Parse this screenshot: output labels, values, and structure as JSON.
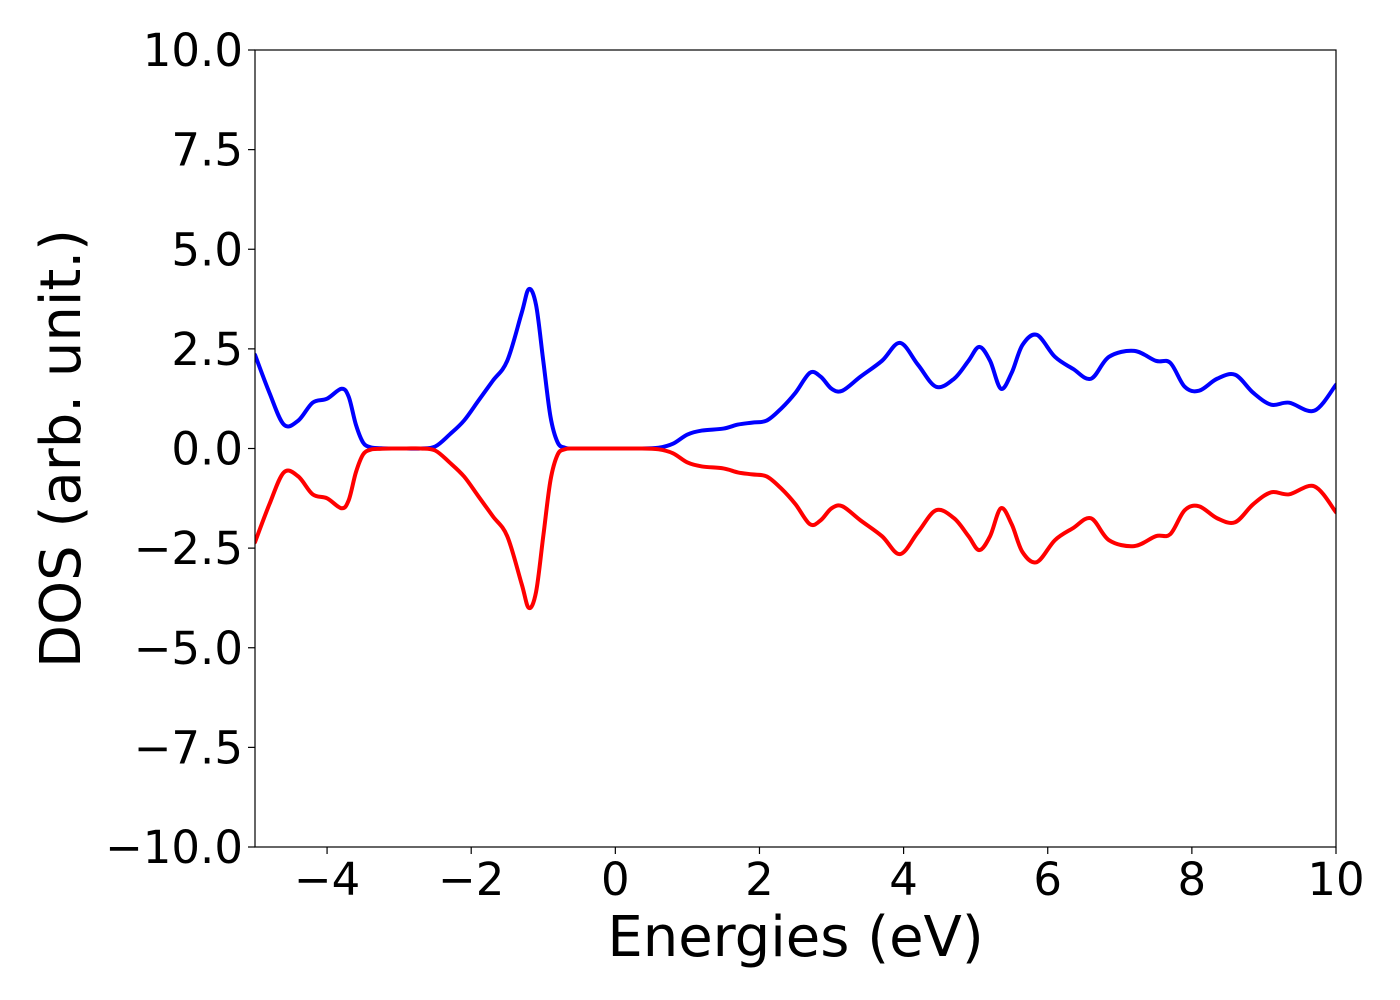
{
  "chart_data": {
    "type": "line",
    "title": "",
    "xlabel": "Energies (eV)",
    "ylabel": "DOS (arb. unit.)",
    "xlim": [
      -5,
      10
    ],
    "ylim": [
      -10,
      10
    ],
    "xticks": [
      -4,
      -2,
      0,
      2,
      4,
      6,
      8,
      10
    ],
    "xtick_labels": [
      "−4",
      "−2",
      "0",
      "2",
      "4",
      "6",
      "8",
      "10"
    ],
    "yticks": [
      10,
      7.5,
      5,
      2.5,
      0,
      -2.5,
      -5,
      -7.5,
      -10
    ],
    "ytick_labels": [
      "10.0",
      "7.5",
      "5.0",
      "2.5",
      "0.0",
      "−2.5",
      "−5.0",
      "−7.5",
      "−10.0"
    ],
    "grid": false,
    "legend": "none",
    "x": [
      -5.0,
      -4.8,
      -4.6,
      -4.4,
      -4.2,
      -4.0,
      -3.8,
      -3.7,
      -3.6,
      -3.5,
      -3.4,
      -3.3,
      -3.1,
      -2.9,
      -2.7,
      -2.5,
      -2.3,
      -2.1,
      -1.9,
      -1.7,
      -1.5,
      -1.3,
      -1.2,
      -1.1,
      -1.0,
      -0.9,
      -0.8,
      -0.7,
      -0.6,
      -0.5,
      -0.3,
      0.0,
      0.3,
      0.6,
      0.8,
      1.0,
      1.2,
      1.5,
      1.7,
      1.9,
      2.1,
      2.3,
      2.5,
      2.7,
      2.85,
      3.0,
      3.15,
      3.4,
      3.7,
      3.95,
      4.2,
      4.45,
      4.7,
      4.9,
      5.05,
      5.2,
      5.35,
      5.5,
      5.65,
      5.85,
      6.1,
      6.35,
      6.6,
      6.85,
      7.2,
      7.5,
      7.7,
      7.9,
      8.1,
      8.35,
      8.6,
      8.85,
      9.1,
      9.35,
      9.7,
      10.0
    ],
    "series": [
      {
        "color": "#0000ff",
        "values": [
          2.35,
          1.4,
          0.6,
          0.7,
          1.15,
          1.25,
          1.5,
          1.3,
          0.6,
          0.15,
          0.03,
          0.01,
          0.0,
          0.0,
          0.0,
          0.05,
          0.35,
          0.7,
          1.2,
          1.7,
          2.2,
          3.4,
          4.0,
          3.6,
          2.2,
          0.8,
          0.15,
          0.02,
          0.0,
          0.0,
          0.0,
          0.0,
          0.0,
          0.02,
          0.12,
          0.35,
          0.45,
          0.5,
          0.6,
          0.65,
          0.7,
          1.0,
          1.4,
          1.9,
          1.8,
          1.5,
          1.45,
          1.8,
          2.2,
          2.65,
          2.1,
          1.55,
          1.75,
          2.2,
          2.55,
          2.2,
          1.5,
          1.9,
          2.6,
          2.85,
          2.3,
          2.0,
          1.75,
          2.3,
          2.45,
          2.2,
          2.15,
          1.55,
          1.45,
          1.75,
          1.85,
          1.4,
          1.1,
          1.15,
          0.95,
          1.6
        ]
      },
      {
        "color": "#ff0000",
        "values": [
          -2.35,
          -1.4,
          -0.6,
          -0.7,
          -1.15,
          -1.25,
          -1.5,
          -1.3,
          -0.6,
          -0.15,
          -0.03,
          -0.01,
          0.0,
          0.0,
          0.0,
          -0.05,
          -0.35,
          -0.7,
          -1.2,
          -1.7,
          -2.2,
          -3.4,
          -4.0,
          -3.6,
          -2.2,
          -0.8,
          -0.15,
          -0.02,
          0.0,
          0.0,
          0.0,
          0.0,
          0.0,
          -0.02,
          -0.12,
          -0.35,
          -0.45,
          -0.5,
          -0.6,
          -0.65,
          -0.7,
          -1.0,
          -1.4,
          -1.9,
          -1.8,
          -1.5,
          -1.45,
          -1.8,
          -2.2,
          -2.65,
          -2.1,
          -1.55,
          -1.75,
          -2.2,
          -2.55,
          -2.2,
          -1.5,
          -1.9,
          -2.6,
          -2.85,
          -2.3,
          -2.0,
          -1.75,
          -2.3,
          -2.45,
          -2.2,
          -2.15,
          -1.55,
          -1.45,
          -1.75,
          -1.85,
          -1.4,
          -1.1,
          -1.15,
          -0.95,
          -1.6
        ]
      }
    ]
  }
}
